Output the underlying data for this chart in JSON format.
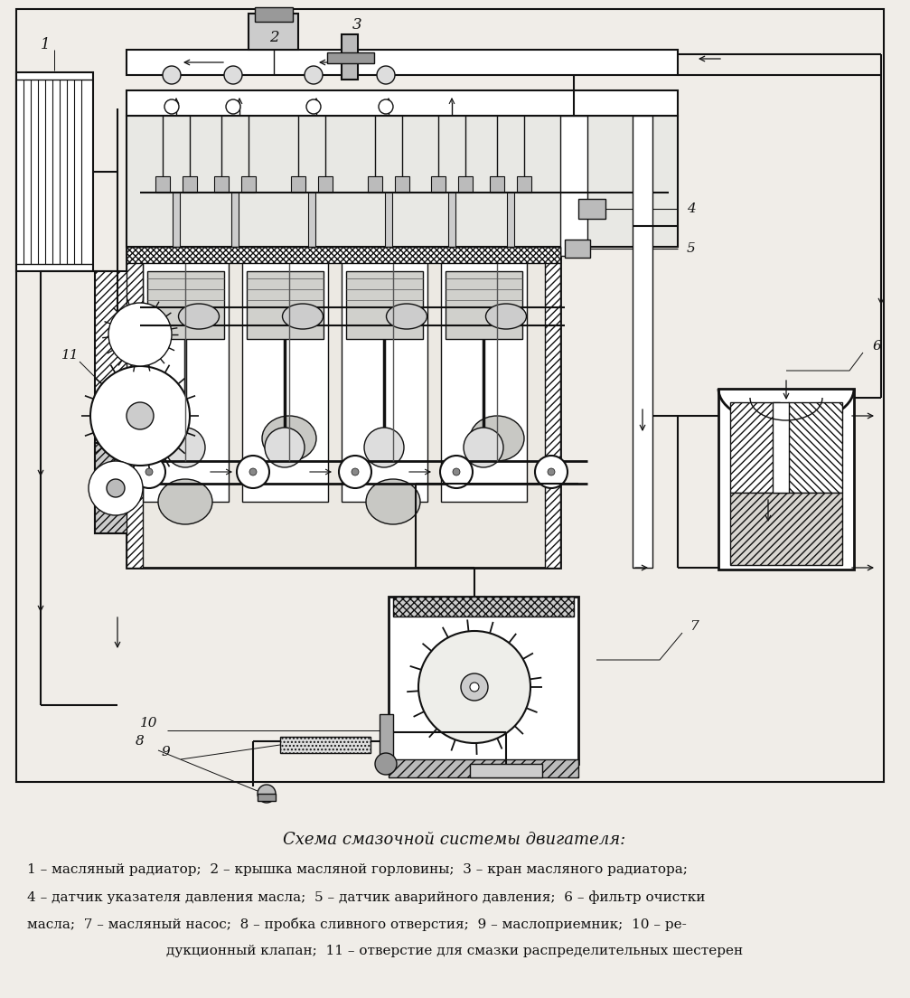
{
  "title": "Схема смазочной системы двигателя:",
  "background_color": "#f0ede8",
  "line_color": "#111111",
  "caption_line1": "1 – масляный радиатор;  2 – крышка масляной горловины;  3 – кран масляного радиатора;",
  "caption_line2": "4 – датчик указателя давления масла;  5 – датчик аварийного давления;  6 – фильтр очистки",
  "caption_line3": "масла;  7 – масляный насос;  8 – пробка сливного отверстия;  9 – маслоприемник;  10 – ре-",
  "caption_line4": "дукционный клапан;  11 – отверстие для смазки распределительных шестерен",
  "figsize": [
    10.07,
    11.04
  ],
  "dpi": 100
}
